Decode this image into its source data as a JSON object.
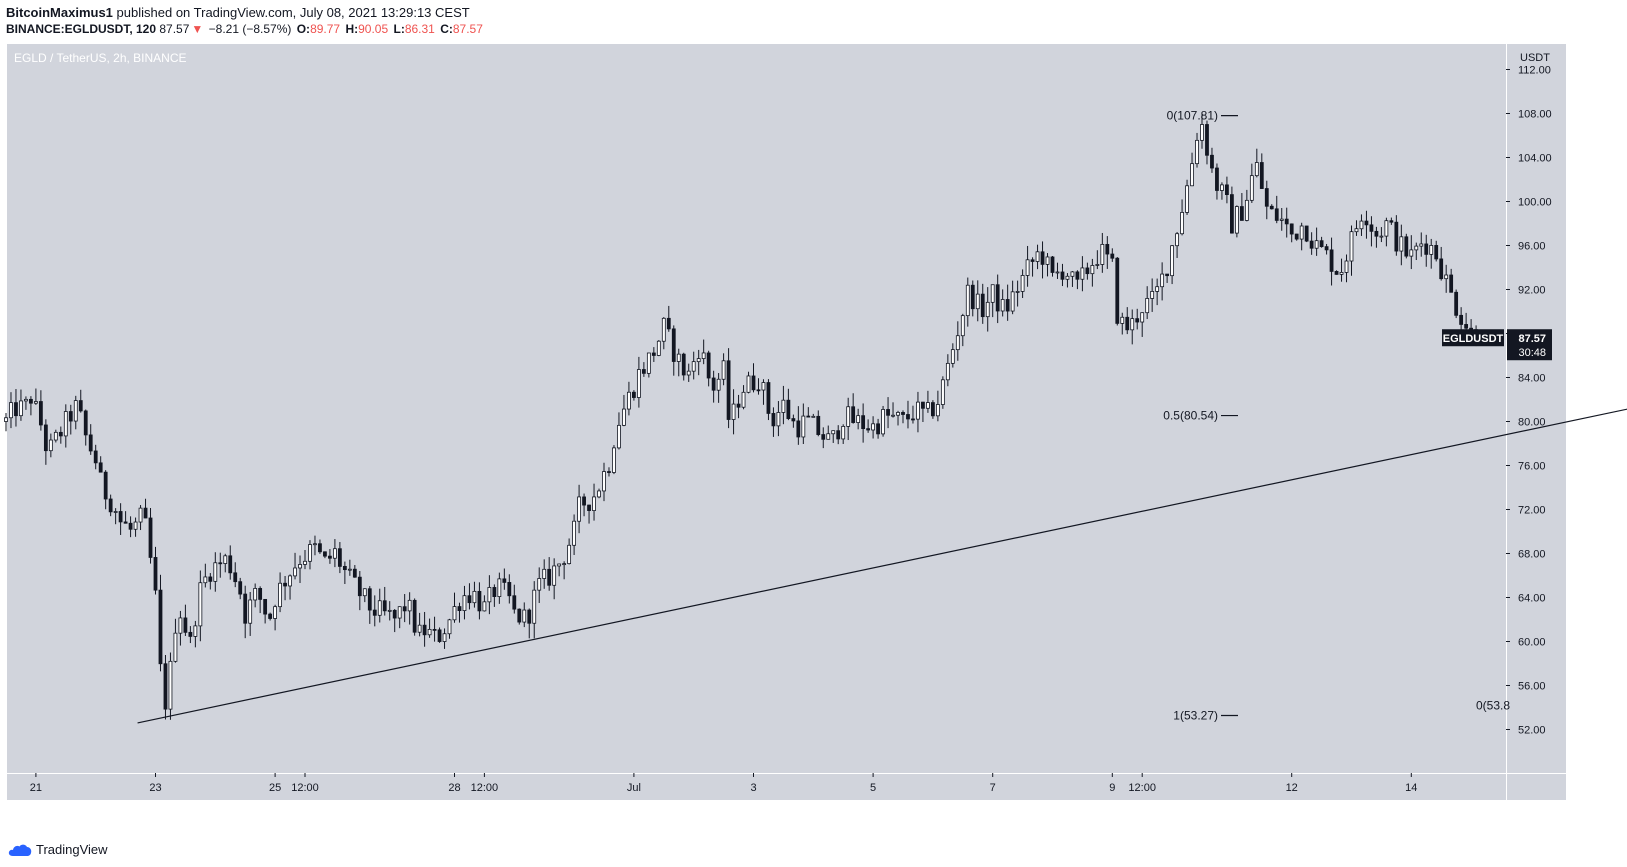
{
  "header": {
    "author": "BitcoinMaximus1",
    "published": "published on TradingView.com, July 08, 2021 13:29:13 CEST",
    "symbol": "BINANCE:EGLDUSDT, 120",
    "last": "87.57",
    "change": "−8.21 (−8.57%)",
    "o_label": "O:",
    "o_value": "89.77",
    "h_label": "H:",
    "h_value": "90.05",
    "l_label": "L:",
    "l_value": "86.31",
    "c_label": "C:",
    "c_value": "87.57"
  },
  "watermark": "EGLD / TetherUS, 2h, BINANCE",
  "price_label": {
    "symbol": "EGLDUSDT",
    "price": "87.57",
    "countdown": "30:48"
  },
  "footer": {
    "brand": "TradingView"
  },
  "colors": {
    "background": "#d1d4dc",
    "candle": "#131722",
    "accent_red": "#ef5350",
    "logo_blue": "#2962ff"
  },
  "chart_data": {
    "type": "candlestick",
    "title": "EGLD / TetherUS, 2h, BINANCE",
    "currency": "USDT",
    "ylim": [
      48.5,
      114
    ],
    "y_ticks": [
      52,
      56,
      60,
      64,
      68,
      72,
      76,
      80,
      84,
      88,
      92,
      96,
      100,
      104,
      108,
      112
    ],
    "y_tick_labels": [
      "52.00",
      "56.00",
      "60.00",
      "64.00",
      "68.00",
      "72.00",
      "76.00",
      "80.00",
      "84.00",
      "88.00",
      "92.00",
      "96.00",
      "100.00",
      "104.00",
      "108.00",
      "112.00"
    ],
    "x_ticks": [
      {
        "label": "21",
        "t": 0.5
      },
      {
        "label": "23",
        "t": 2.5
      },
      {
        "label": "25",
        "t": 4.5
      },
      {
        "label": "12:00",
        "t": 5.0
      },
      {
        "label": "28",
        "t": 7.5
      },
      {
        "label": "12:00",
        "t": 8.0
      },
      {
        "label": "Jul",
        "t": 10.5
      },
      {
        "label": "3",
        "t": 12.5
      },
      {
        "label": "5",
        "t": 14.5
      },
      {
        "label": "7",
        "t": 16.5
      },
      {
        "label": "9",
        "t": 18.5
      },
      {
        "label": "12:00",
        "t": 19.0
      },
      {
        "label": "12",
        "t": 21.5
      },
      {
        "label": "14",
        "t": 23.5
      }
    ],
    "x_ticks_note": "t = days since June 20 00:00 (2021)",
    "price_path": [
      [
        0.0,
        80.0
      ],
      [
        0.2,
        81.5
      ],
      [
        0.3,
        80.8
      ],
      [
        0.4,
        82.5
      ],
      [
        0.6,
        79.5
      ],
      [
        0.7,
        77.0
      ],
      [
        0.8,
        78.0
      ],
      [
        1.1,
        80.8
      ],
      [
        1.2,
        81.4
      ],
      [
        1.3,
        79.0
      ],
      [
        1.5,
        76.5
      ],
      [
        1.6,
        74.0
      ],
      [
        1.8,
        72.5
      ],
      [
        1.9,
        71.0
      ],
      [
        2.1,
        70.0
      ],
      [
        2.3,
        71.5
      ],
      [
        2.4,
        68.0
      ],
      [
        2.5,
        64.0
      ],
      [
        2.6,
        56.0
      ],
      [
        2.7,
        53.8
      ],
      [
        2.8,
        61.0
      ],
      [
        2.9,
        63.0
      ],
      [
        3.1,
        59.5
      ],
      [
        3.2,
        64.0
      ],
      [
        3.4,
        66.5
      ],
      [
        3.7,
        67.5
      ],
      [
        3.9,
        65.0
      ],
      [
        4.0,
        62.5
      ],
      [
        4.2,
        64.5
      ],
      [
        4.4,
        62.0
      ],
      [
        4.5,
        64.0
      ],
      [
        4.7,
        66.0
      ],
      [
        4.9,
        67.5
      ],
      [
        5.2,
        68.5
      ],
      [
        5.3,
        67.0
      ],
      [
        5.5,
        68.0
      ],
      [
        5.7,
        66.0
      ],
      [
        5.9,
        64.5
      ],
      [
        6.1,
        63.0
      ],
      [
        6.3,
        62.5
      ],
      [
        6.5,
        62.0
      ],
      [
        6.7,
        63.5
      ],
      [
        6.9,
        60.5
      ],
      [
        7.0,
        61.0
      ],
      [
        7.2,
        60.2
      ],
      [
        7.4,
        61.8
      ],
      [
        7.6,
        64.0
      ],
      [
        7.8,
        64.5
      ],
      [
        8.0,
        63.0
      ],
      [
        8.2,
        65.0
      ],
      [
        8.4,
        64.0
      ],
      [
        8.5,
        62.5
      ],
      [
        8.7,
        62.0
      ],
      [
        8.9,
        65.0
      ],
      [
        9.1,
        66.0
      ],
      [
        9.3,
        67.5
      ],
      [
        9.5,
        70.0
      ],
      [
        9.6,
        72.5
      ],
      [
        9.8,
        73.0
      ],
      [
        9.9,
        74.0
      ],
      [
        10.1,
        76.5
      ],
      [
        10.2,
        79.5
      ],
      [
        10.4,
        82.0
      ],
      [
        10.6,
        84.5
      ],
      [
        10.8,
        86.0
      ],
      [
        11.0,
        88.5
      ],
      [
        11.2,
        86.0
      ],
      [
        11.4,
        84.0
      ],
      [
        11.6,
        87.0
      ],
      [
        11.8,
        83.0
      ],
      [
        12.0,
        84.5
      ],
      [
        12.1,
        79.5
      ],
      [
        12.3,
        83.0
      ],
      [
        12.6,
        84.0
      ],
      [
        12.8,
        80.0
      ],
      [
        13.0,
        81.5
      ],
      [
        13.2,
        79.5
      ],
      [
        13.4,
        80.0
      ],
      [
        13.6,
        79.0
      ],
      [
        13.8,
        78.0
      ],
      [
        14.0,
        80.5
      ],
      [
        14.2,
        80.0
      ],
      [
        14.5,
        79.5
      ],
      [
        14.7,
        80.5
      ],
      [
        15.0,
        80.0
      ],
      [
        15.2,
        81.0
      ],
      [
        15.4,
        80.5
      ],
      [
        15.6,
        82.0
      ],
      [
        15.8,
        86.0
      ],
      [
        15.9,
        88.0
      ],
      [
        16.1,
        92.0
      ],
      [
        16.3,
        90.0
      ],
      [
        16.5,
        91.5
      ],
      [
        16.7,
        90.0
      ],
      [
        16.9,
        92.0
      ],
      [
        17.1,
        94.0
      ],
      [
        17.3,
        95.5
      ],
      [
        17.5,
        93.0
      ],
      [
        17.7,
        94.0
      ],
      [
        17.9,
        92.0
      ],
      [
        18.1,
        94.0
      ],
      [
        18.3,
        95.5
      ],
      [
        18.5,
        94.0
      ],
      [
        18.6,
        89.0
      ],
      [
        18.8,
        88.5
      ],
      [
        19.0,
        90.5
      ],
      [
        19.2,
        91.0
      ],
      [
        19.4,
        94.0
      ],
      [
        19.6,
        98.0
      ],
      [
        19.8,
        102.5
      ],
      [
        19.9,
        106.0
      ],
      [
        20.0,
        107.0
      ],
      [
        20.2,
        102.0
      ],
      [
        20.4,
        100.0
      ],
      [
        20.5,
        98.0
      ],
      [
        20.7,
        99.5
      ],
      [
        20.9,
        103.5
      ],
      [
        21.1,
        99.0
      ],
      [
        21.3,
        98.5
      ],
      [
        21.5,
        97.0
      ],
      [
        21.7,
        98.0
      ],
      [
        21.9,
        96.0
      ],
      [
        22.1,
        95.0
      ],
      [
        22.3,
        93.5
      ],
      [
        22.5,
        96.5
      ],
      [
        22.7,
        99.5
      ],
      [
        22.9,
        97.0
      ],
      [
        23.1,
        98.0
      ],
      [
        23.3,
        96.0
      ],
      [
        23.5,
        95.0
      ],
      [
        23.7,
        96.5
      ],
      [
        23.9,
        95.5
      ],
      [
        24.0,
        94.0
      ],
      [
        24.2,
        91.0
      ],
      [
        24.4,
        89.0
      ],
      [
        24.5,
        88.0
      ],
      [
        24.6,
        87.6
      ]
    ],
    "annotations": {
      "fib_levels": [
        {
          "label": "0(107.81)",
          "value": 107.81
        },
        {
          "label": "0.5(80.54)",
          "value": 80.54
        },
        {
          "label": "1(53.27)",
          "value": 53.27
        }
      ],
      "fib_partial_label": "0(53.8",
      "trendline": {
        "from": [
          2.2,
          52.6
        ],
        "to": [
          28.4,
          82.6
        ]
      },
      "current_price": 87.57
    }
  }
}
